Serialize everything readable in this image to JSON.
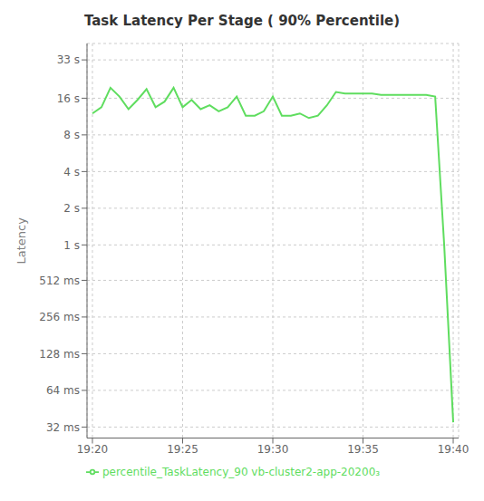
{
  "chart_data": {
    "type": "line",
    "title": "Task Latency Per Stage ( 90% Percentile)",
    "ylabel": "Latency",
    "x": [
      0,
      0.5,
      1.0,
      1.5,
      2.0,
      2.5,
      3.0,
      3.5,
      4.0,
      4.5,
      5.0,
      5.5,
      6.0,
      6.5,
      7.0,
      7.5,
      8.0,
      8.5,
      9.0,
      9.5,
      10.0,
      10.5,
      11.0,
      11.5,
      12.0,
      12.5,
      13.0,
      13.5,
      14.0,
      14.5,
      15.0,
      15.5,
      16.0,
      16.5,
      17.0,
      17.5,
      18.0,
      18.5,
      19.0,
      19.5,
      20.0
    ],
    "series": [
      {
        "name": "percentile_TaskLatency_90 vb-cluster2-app-20200₃",
        "color": "#5fdd5f",
        "values": [
          12.0,
          13.5,
          19.5,
          16.5,
          13.0,
          15.5,
          19.0,
          13.5,
          15.0,
          19.5,
          13.5,
          15.5,
          13.0,
          14.0,
          12.5,
          13.5,
          16.5,
          11.5,
          11.5,
          12.5,
          16.5,
          11.5,
          11.5,
          12.0,
          11.0,
          11.5,
          14.0,
          18.0,
          17.5,
          17.5,
          17.5,
          17.5,
          17.0,
          17.0,
          17.0,
          17.0,
          17.0,
          17.0,
          16.5,
          1.0,
          0.035
        ]
      }
    ],
    "xlim": [
      -0.3,
      20.3
    ],
    "xticks": [
      {
        "value": 0,
        "label": "19:20"
      },
      {
        "value": 5,
        "label": "19:25"
      },
      {
        "value": 10,
        "label": "19:30"
      },
      {
        "value": 15,
        "label": "19:35"
      },
      {
        "value": 20,
        "label": "19:40"
      }
    ],
    "ylim": [
      0.026,
      45.0
    ],
    "yticks": [
      {
        "value": 0.032,
        "label": "32 ms"
      },
      {
        "value": 0.064,
        "label": "64 ms"
      },
      {
        "value": 0.128,
        "label": "128 ms"
      },
      {
        "value": 0.256,
        "label": "256 ms"
      },
      {
        "value": 0.512,
        "label": "512 ms"
      },
      {
        "value": 1.0,
        "label": "1 s"
      },
      {
        "value": 2.0,
        "label": "2 s"
      },
      {
        "value": 4.0,
        "label": "4 s"
      },
      {
        "value": 8.0,
        "label": "8 s"
      },
      {
        "value": 16.0,
        "label": "16 s"
      },
      {
        "value": 33.0,
        "label": "33 s"
      }
    ],
    "log": "y",
    "grid": true,
    "legend": "bottom"
  }
}
